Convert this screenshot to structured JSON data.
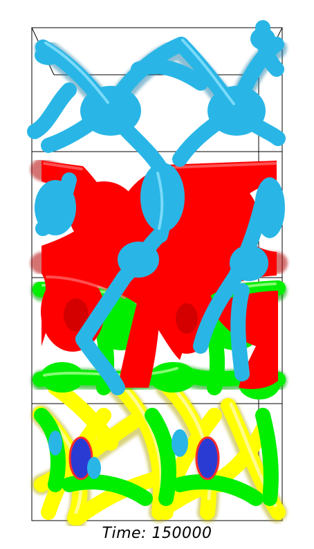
{
  "caption": {
    "time_label": "Time:",
    "time_value": "150000"
  },
  "colors": {
    "background": "#ffffff",
    "frame": "#000000",
    "phase_cyan": "#29b6e6",
    "phase_red": "#ff0000",
    "phase_green": "#00ee00",
    "phase_yellow": "#ffff00",
    "phase_blue": "#2a3bd4"
  },
  "scene": {
    "type": "3D isosurface rendering of gyroid-like network structure",
    "layers": [
      "cyan",
      "red",
      "green",
      "yellow"
    ]
  }
}
